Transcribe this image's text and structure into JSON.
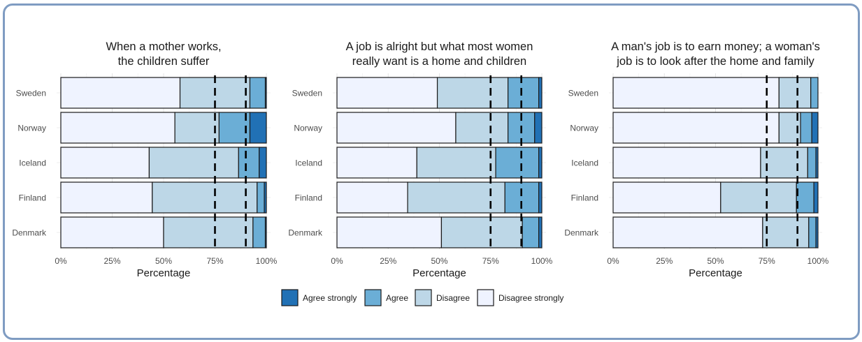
{
  "chart_data": [
    {
      "type": "bar",
      "orientation": "horizontal",
      "stacked": "percent",
      "title_lines": [
        "When a mother works,",
        "the children suffer"
      ],
      "xlabel": "Percentage",
      "ylabel": "",
      "xlim": [
        0,
        100
      ],
      "x_ticks": [
        "0%",
        "25%",
        "50%",
        "75%",
        "100%"
      ],
      "categories": [
        "Sweden",
        "Norway",
        "Iceland",
        "Finland",
        "Denmark"
      ],
      "series": [
        {
          "name": "Disagree strongly",
          "values": [
            58,
            55.5,
            43,
            44.5,
            50
          ]
        },
        {
          "name": "Disagree",
          "values": [
            34,
            21.5,
            43.5,
            51,
            43.5
          ]
        },
        {
          "name": "Agree",
          "values": [
            7.5,
            15,
            10,
            3.5,
            6
          ]
        },
        {
          "name": "Agree strongly",
          "values": [
            0.5,
            8,
            3.5,
            1,
            0.5
          ]
        }
      ],
      "reference_lines": [
        75,
        90
      ]
    },
    {
      "type": "bar",
      "orientation": "horizontal",
      "stacked": "percent",
      "title_lines": [
        "A job is alright but what most women",
        "really want is a home and children"
      ],
      "xlabel": "Percentage",
      "ylabel": "",
      "xlim": [
        0,
        100
      ],
      "x_ticks": [
        "0%",
        "25%",
        "50%",
        "75%",
        "100%"
      ],
      "categories": [
        "Sweden",
        "Norway",
        "Iceland",
        "Finland",
        "Denmark"
      ],
      "series": [
        {
          "name": "Disagree strongly",
          "values": [
            49,
            58,
            39,
            34.5,
            51
          ]
        },
        {
          "name": "Disagree",
          "values": [
            34.5,
            25.5,
            38.5,
            47.5,
            39.5
          ]
        },
        {
          "name": "Agree",
          "values": [
            15,
            13,
            21,
            16.5,
            8
          ]
        },
        {
          "name": "Agree strongly",
          "values": [
            1.5,
            3.5,
            1.5,
            1.5,
            1.5
          ]
        }
      ],
      "reference_lines": [
        75,
        90
      ]
    },
    {
      "type": "bar",
      "orientation": "horizontal",
      "stacked": "percent",
      "title_lines": [
        "A man's job is to earn money; a woman's",
        "job is to look after the home and family"
      ],
      "xlabel": "Percentage",
      "ylabel": "",
      "xlim": [
        0,
        100
      ],
      "x_ticks": [
        "0%",
        "25%",
        "50%",
        "75%",
        "100%"
      ],
      "categories": [
        "Sweden",
        "Norway",
        "Iceland",
        "Finland",
        "Denmark"
      ],
      "series": [
        {
          "name": "Disagree strongly",
          "values": [
            81,
            81,
            72,
            52.5,
            73
          ]
        },
        {
          "name": "Disagree",
          "values": [
            15.5,
            10.5,
            23,
            37,
            22.5
          ]
        },
        {
          "name": "Agree",
          "values": [
            3.5,
            5.5,
            4,
            8.5,
            3.5
          ]
        },
        {
          "name": "Agree strongly",
          "values": [
            0,
            3,
            1,
            2,
            1
          ]
        }
      ],
      "reference_lines": [
        75,
        90
      ]
    }
  ],
  "legend": [
    {
      "label": "Agree strongly",
      "color": "#2171b5"
    },
    {
      "label": "Agree",
      "color": "#6baed6"
    },
    {
      "label": "Disagree",
      "color": "#bdd7e7"
    },
    {
      "label": "Disagree strongly",
      "color": "#eff3ff"
    }
  ],
  "colors": {
    "Disagree strongly": "#eff3ff",
    "Disagree": "#bdd7e7",
    "Agree": "#6baed6",
    "Agree strongly": "#2171b5"
  }
}
